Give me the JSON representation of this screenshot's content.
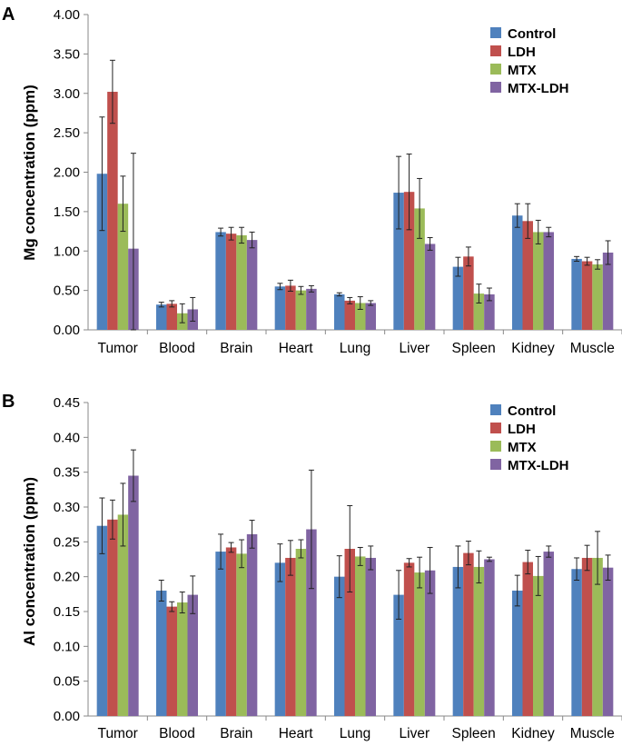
{
  "figure": {
    "panels": [
      "A",
      "B"
    ]
  },
  "chart_data": [
    {
      "type": "bar",
      "panel": "A",
      "title": "",
      "xlabel": "",
      "ylabel": "Mg concentration (ppm)",
      "ylim": [
        0,
        4
      ],
      "yticks": [
        "0.00",
        "0.50",
        "1.00",
        "1.50",
        "2.00",
        "2.50",
        "3.00",
        "3.50",
        "4.00"
      ],
      "categories": [
        "Tumor",
        "Blood",
        "Brain",
        "Heart",
        "Lung",
        "Liver",
        "Spleen",
        "Kidney",
        "Muscle"
      ],
      "series": [
        {
          "name": "Control",
          "color": "#4f81bd",
          "values": [
            1.98,
            0.32,
            1.24,
            0.55,
            0.45,
            1.74,
            0.8,
            1.45,
            0.9
          ],
          "errors": [
            0.72,
            0.03,
            0.05,
            0.04,
            0.02,
            0.46,
            0.12,
            0.15,
            0.03
          ]
        },
        {
          "name": "LDH",
          "color": "#c0504d",
          "values": [
            3.02,
            0.33,
            1.22,
            0.56,
            0.37,
            1.75,
            0.93,
            1.38,
            0.87
          ],
          "errors": [
            0.4,
            0.04,
            0.08,
            0.07,
            0.04,
            0.48,
            0.12,
            0.22,
            0.05
          ]
        },
        {
          "name": "MTX",
          "color": "#9bbb59",
          "values": [
            1.6,
            0.21,
            1.2,
            0.5,
            0.34,
            1.54,
            0.46,
            1.24,
            0.83
          ],
          "errors": [
            0.35,
            0.12,
            0.1,
            0.05,
            0.08,
            0.38,
            0.12,
            0.15,
            0.06
          ]
        },
        {
          "name": "MTX-LDH",
          "color": "#8064a2",
          "values": [
            1.03,
            0.26,
            1.14,
            0.52,
            0.34,
            1.09,
            0.45,
            1.24,
            0.98
          ],
          "errors": [
            1.21,
            0.15,
            0.1,
            0.04,
            0.03,
            0.08,
            0.08,
            0.06,
            0.15
          ]
        }
      ],
      "legend": "top-right"
    },
    {
      "type": "bar",
      "panel": "B",
      "title": "",
      "xlabel": "",
      "ylabel": "Al concentration (ppm)",
      "ylim": [
        0,
        0.45
      ],
      "yticks": [
        "0.00",
        "0.05",
        "0.10",
        "0.15",
        "0.20",
        "0.25",
        "0.30",
        "0.35",
        "0.40",
        "0.45"
      ],
      "categories": [
        "Tumor",
        "Blood",
        "Brain",
        "Heart",
        "Lung",
        "Liver",
        "Spleen",
        "Kidney",
        "Muscle"
      ],
      "series": [
        {
          "name": "Control",
          "color": "#4f81bd",
          "values": [
            0.273,
            0.18,
            0.236,
            0.22,
            0.2,
            0.174,
            0.214,
            0.18,
            0.211
          ],
          "errors": [
            0.04,
            0.015,
            0.025,
            0.027,
            0.03,
            0.035,
            0.03,
            0.022,
            0.016
          ]
        },
        {
          "name": "LDH",
          "color": "#c0504d",
          "values": [
            0.282,
            0.157,
            0.242,
            0.227,
            0.24,
            0.22,
            0.234,
            0.221,
            0.227
          ],
          "errors": [
            0.028,
            0.007,
            0.007,
            0.025,
            0.062,
            0.006,
            0.017,
            0.017,
            0.018
          ]
        },
        {
          "name": "MTX",
          "color": "#9bbb59",
          "values": [
            0.289,
            0.163,
            0.233,
            0.24,
            0.229,
            0.206,
            0.214,
            0.201,
            0.227
          ],
          "errors": [
            0.045,
            0.015,
            0.02,
            0.013,
            0.013,
            0.022,
            0.023,
            0.028,
            0.038
          ]
        },
        {
          "name": "MTX-LDH",
          "color": "#8064a2",
          "values": [
            0.345,
            0.174,
            0.261,
            0.268,
            0.227,
            0.209,
            0.225,
            0.236,
            0.213
          ],
          "errors": [
            0.037,
            0.027,
            0.02,
            0.085,
            0.017,
            0.033,
            0.003,
            0.008,
            0.018
          ]
        }
      ],
      "legend": "top-right"
    }
  ]
}
